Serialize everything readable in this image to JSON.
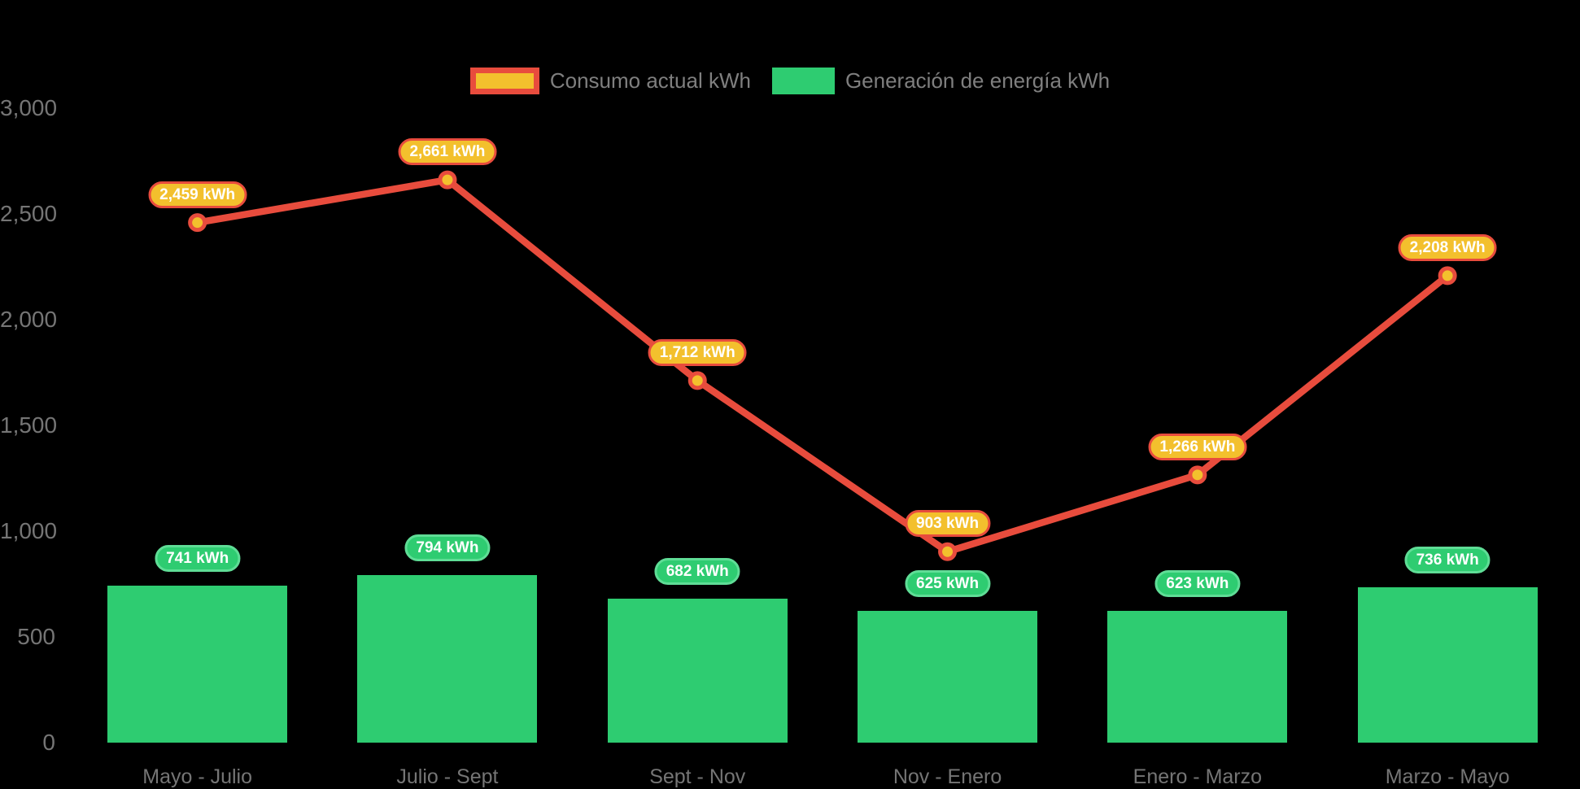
{
  "chart_data": {
    "type": "combo_bar_line",
    "title": "",
    "categories": [
      "Mayo - Julio",
      "Julio - Sept",
      "Sept - Nov",
      "Nov - Enero",
      "Enero - Marzo",
      "Marzo - Mayo"
    ],
    "series": [
      {
        "name": "Consumo actual kWh",
        "type": "line",
        "color": "#e84c3d",
        "marker_color": "#f3c02d",
        "values": [
          2459,
          2661,
          1712,
          903,
          1266,
          2208
        ],
        "labels": [
          "2,459 kWh",
          "2,661 kWh",
          "1,712 kWh",
          "903 kWh",
          "1,266 kWh",
          "2,208 kWh"
        ]
      },
      {
        "name": "Generación de energía kWh",
        "type": "bar",
        "color": "#2ecc71",
        "badge_border_color": "#5fdd96",
        "values": [
          741,
          794,
          682,
          625,
          623,
          736
        ],
        "labels": [
          "741 kWh",
          "794 kWh",
          "682 kWh",
          "625 kWh",
          "623 kWh",
          "736 kWh"
        ]
      }
    ],
    "y_axis": {
      "range": [
        0,
        3000
      ],
      "ticks": [
        {
          "value": 3000,
          "label": "3,000"
        },
        {
          "value": 2500,
          "label": "2,500"
        },
        {
          "value": 2000,
          "label": "2,000"
        },
        {
          "value": 1500,
          "label": "1,500"
        },
        {
          "value": 1000,
          "label": "1,000"
        },
        {
          "value": 500,
          "label": "500"
        },
        {
          "value": 0,
          "label": "0"
        }
      ]
    },
    "legend_position": "top-center",
    "grid": false,
    "background": "#000000",
    "axis_text_color": "#757575",
    "badge_text_color": "#ffffff"
  }
}
